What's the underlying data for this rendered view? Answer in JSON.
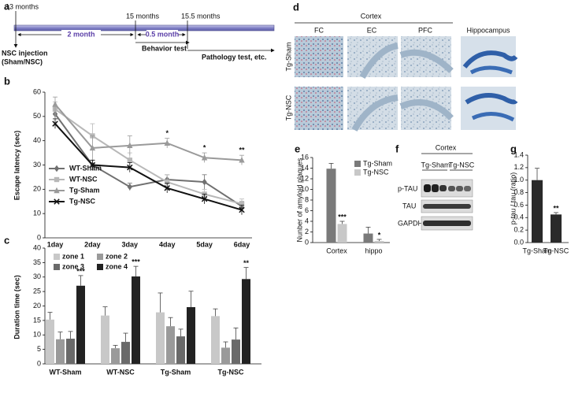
{
  "timeline": {
    "panel": "a",
    "timepoints": [
      "13 months",
      "15 months",
      "15.5 months"
    ],
    "intervals": [
      "2 month",
      "0.5 month"
    ],
    "events": [
      "NSC injection",
      "(Sham/NSC)",
      "Behavior test",
      "Pathology test, etc."
    ]
  },
  "histology": {
    "panel": "d",
    "header": "Cortex",
    "columns": [
      "FC",
      "EC",
      "PFC",
      "Hippocampus"
    ],
    "rows": [
      "Tg-Sham",
      "Tg-NSC"
    ]
  },
  "western_blot": {
    "panel": "f",
    "header": "Cortex",
    "groups": [
      "Tg-Sham",
      "Tg-NSC"
    ],
    "rows": [
      "p-TAU",
      "TAU",
      "GAPDH"
    ]
  },
  "chart_data": [
    {
      "type": "line",
      "panel": "b",
      "y_label": "Escape latency (sec)",
      "categories": [
        "1day",
        "2day",
        "3day",
        "4day",
        "5day",
        "6day"
      ],
      "ylim": [
        0,
        60
      ],
      "yticks": [
        0,
        10,
        20,
        30,
        40,
        50,
        60
      ],
      "series": [
        {
          "name": "WT-Sham",
          "color": "#707070",
          "marker": "diamond",
          "values": [
            51,
            30,
            21,
            24,
            23,
            13
          ],
          "errors": [
            2,
            2,
            1.5,
            2,
            3,
            2
          ]
        },
        {
          "name": "WT-NSC",
          "color": "#b8b8b8",
          "marker": "square",
          "values": [
            53,
            42,
            32,
            23,
            18,
            14
          ],
          "errors": [
            3,
            5,
            3,
            3,
            2,
            2
          ]
        },
        {
          "name": "Tg-Sham",
          "color": "#9a9a9a",
          "marker": "triangle",
          "values": [
            55,
            37,
            38,
            39,
            33,
            32
          ],
          "errors": [
            3,
            5,
            4,
            2,
            2,
            2
          ],
          "significance": [
            null,
            null,
            null,
            "*",
            "*",
            "**"
          ]
        },
        {
          "name": "Tg-NSC",
          "color": "#111111",
          "marker": "cross",
          "values": [
            47,
            30,
            29,
            20.5,
            16,
            11.5
          ],
          "errors": [
            2,
            2,
            2,
            2,
            2,
            2
          ]
        }
      ]
    },
    {
      "type": "bar",
      "panel": "c",
      "y_label": "Duration time (sec)",
      "categories": [
        "WT-Sham",
        "WT-NSC",
        "Tg-Sham",
        "Tg-NSC"
      ],
      "ylim": [
        0,
        40
      ],
      "yticks": [
        0,
        5,
        10,
        15,
        20,
        25,
        30,
        35,
        40
      ],
      "series": [
        {
          "name": "zone 1",
          "color": "#c8c8c8",
          "values": [
            15.3,
            16.7,
            17.8,
            16.5
          ],
          "errors": [
            2.5,
            3,
            6.7,
            2.5
          ]
        },
        {
          "name": "zone 2",
          "color": "#9a9a9a",
          "values": [
            8.5,
            5.4,
            13,
            5.6
          ],
          "errors": [
            2.5,
            1,
            3,
            2
          ]
        },
        {
          "name": "zone 3",
          "color": "#6a6a6a",
          "values": [
            8.7,
            7.6,
            9.5,
            8.4
          ],
          "errors": [
            2.5,
            3,
            2.5,
            4
          ]
        },
        {
          "name": "zone 4",
          "color": "#222222",
          "values": [
            27,
            30.2,
            19.6,
            29.3
          ],
          "errors": [
            3.5,
            3.5,
            5.5,
            4
          ],
          "significance": [
            "***",
            "***",
            null,
            "**"
          ]
        }
      ]
    },
    {
      "type": "bar",
      "panel": "e",
      "y_label": "Nunber of amyloid plaques",
      "categories": [
        "Cortex",
        "hippo"
      ],
      "ylim": [
        0,
        16
      ],
      "yticks": [
        0,
        2,
        4,
        6,
        8,
        10,
        12,
        14,
        16
      ],
      "series": [
        {
          "name": "Tg-Sham",
          "color": "#7a7a7a",
          "values": [
            13.9,
            1.7
          ],
          "errors": [
            1,
            1.2
          ]
        },
        {
          "name": "Tg-NSC",
          "color": "#c8c8c8",
          "values": [
            3.5,
            0.3
          ],
          "errors": [
            0.5,
            0.3
          ],
          "significance": [
            "***",
            "*"
          ]
        }
      ]
    },
    {
      "type": "bar",
      "panel": "g",
      "y_label": "p-tau / tau (ratio)",
      "categories": [
        "Tg-Sham",
        "Tg-NSC"
      ],
      "ylim": [
        0,
        1.4
      ],
      "yticks": [
        {
          "value": 0,
          "label": "0.0"
        },
        0.2,
        0.4,
        0.6,
        0.8,
        {
          "value": 1,
          "label": "1.0"
        },
        1.2,
        1.4
      ],
      "series": [
        {
          "color": "#2a2a2a",
          "values": [
            1.0,
            0.45
          ],
          "errors": [
            0.19,
            0.03
          ],
          "significance": [
            null,
            "**"
          ]
        }
      ]
    }
  ]
}
